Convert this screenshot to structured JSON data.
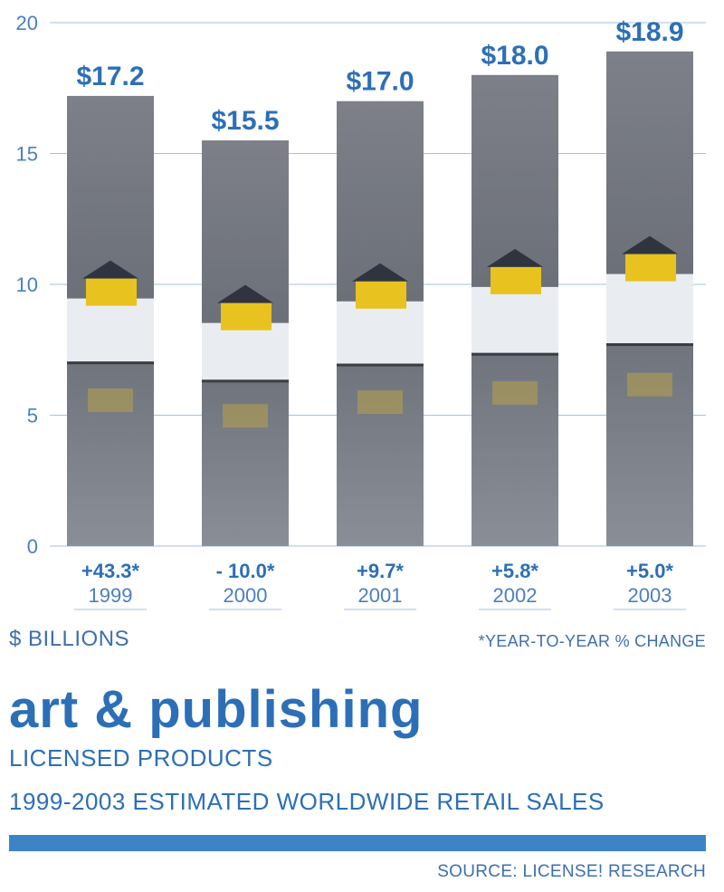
{
  "chart_data": {
    "type": "bar",
    "categories": [
      "1999",
      "2000",
      "2001",
      "2002",
      "2003"
    ],
    "values": [
      17.2,
      15.5,
      17.0,
      18.0,
      18.9
    ],
    "value_labels": [
      "$17.2",
      "$15.5",
      "$17.0",
      "$18.0",
      "$18.9"
    ],
    "change_labels": [
      "+43.3*",
      "- 10.0*",
      "+9.7*",
      "+5.8*",
      "+5.0*"
    ],
    "yticks": [
      0,
      5,
      10,
      15,
      20
    ],
    "ylim": [
      0,
      20
    ],
    "grid": true,
    "title": "art & publishing",
    "subtitle": "LICENSED PRODUCTS",
    "subtitle2": "1999-2003 ESTIMATED WORLDWIDE RETAIL SALES",
    "ylabel": "$ BILLIONS",
    "note": "*YEAR-TO-YEAR % CHANGE",
    "source": "SOURCE: LICENSE! RESEARCH"
  },
  "colors": {
    "accent": "#2c6fb7",
    "tick_text": "#4a7fbf",
    "gridline": "#9fc0e6",
    "bar_fill": "#6e7279",
    "house": "#e8c21e",
    "snow": "#e9ecf1"
  }
}
